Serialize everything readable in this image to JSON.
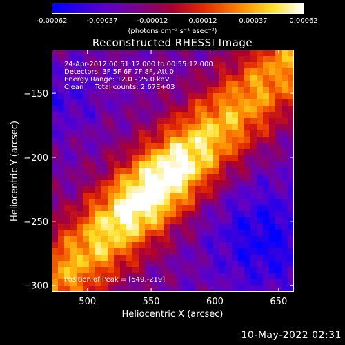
{
  "colorbar": {
    "ticks": [
      "-0.00062",
      "-0.00037",
      "-0.00012",
      "0.00012",
      "0.00037",
      "0.00062"
    ],
    "unit_label": "(photons cm⁻² s⁻¹ asec⁻²)"
  },
  "chart_data": {
    "type": "heatmap",
    "title": "Reconstructed RHESSI Image",
    "xlabel": "Heliocentric X (arcsec)",
    "ylabel": "Heliocentric Y (arcsec)",
    "xlim": [
      472,
      662
    ],
    "ylim": [
      -305,
      -116
    ],
    "xticks": [
      500,
      550,
      600,
      650
    ],
    "yticks": [
      -150,
      -200,
      -250,
      -300
    ],
    "colorbar_range": [
      -0.00062,
      0.00062
    ],
    "colormap": "blue-purple-red-orange-yellow-white",
    "annotations": {
      "time": "24-Apr-2012 00:51:12.000 to 00:55:12.000",
      "detectors": "Detectors: 3F 5F 6F 7F 8F, Att 0",
      "energy": "Energy Range: 12.0 - 25.0 keV",
      "clean": "Clean     Total counts: 2.67E+03",
      "peak": "Position of Peak = [549,-219]"
    },
    "peak_position": [
      549,
      -219
    ]
  },
  "footer": {
    "date": "10-May-2022 02:31"
  }
}
